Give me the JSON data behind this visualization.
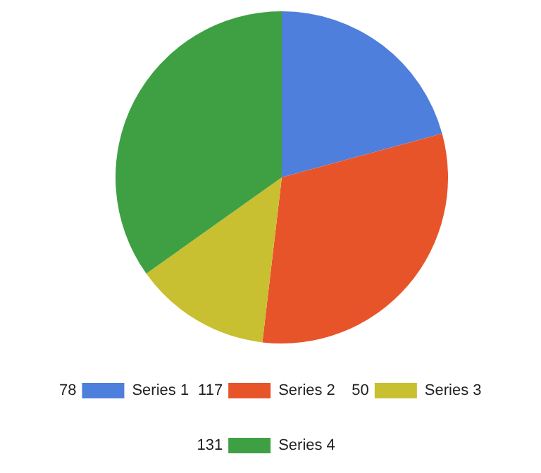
{
  "chart_data": {
    "type": "pie",
    "categories": [
      "Series 1",
      "Series 2",
      "Series 3",
      "Series 4"
    ],
    "values": [
      78,
      117,
      50,
      131
    ],
    "colors": [
      "#4f7fdc",
      "#e8542a",
      "#c8c030",
      "#3ea043"
    ],
    "data_labels": true,
    "legend": "bottom"
  }
}
